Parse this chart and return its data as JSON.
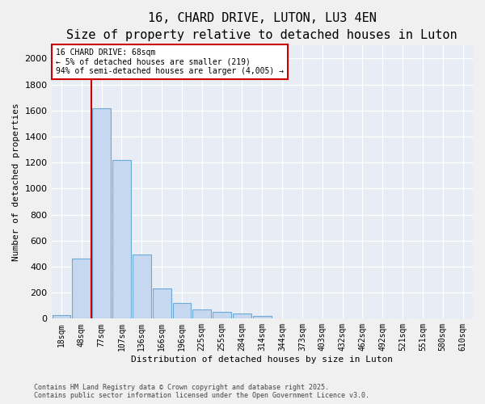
{
  "title": "16, CHARD DRIVE, LUTON, LU3 4EN",
  "subtitle": "Size of property relative to detached houses in Luton",
  "xlabel": "Distribution of detached houses by size in Luton",
  "ylabel": "Number of detached properties",
  "bin_labels": [
    "18sqm",
    "48sqm",
    "77sqm",
    "107sqm",
    "136sqm",
    "166sqm",
    "196sqm",
    "225sqm",
    "255sqm",
    "284sqm",
    "314sqm",
    "344sqm",
    "373sqm",
    "403sqm",
    "432sqm",
    "462sqm",
    "492sqm",
    "521sqm",
    "551sqm",
    "580sqm",
    "610sqm"
  ],
  "bar_heights": [
    30,
    460,
    1620,
    1220,
    490,
    230,
    120,
    70,
    50,
    40,
    20,
    5,
    2,
    1,
    1,
    0,
    0,
    0,
    0,
    0,
    0
  ],
  "bar_color": "#c5d8ef",
  "bar_edge_color": "#6aaad4",
  "vline_x": 1.5,
  "vline_color": "#cc0000",
  "annotation_text": "16 CHARD DRIVE: 68sqm\n← 5% of detached houses are smaller (219)\n94% of semi-detached houses are larger (4,005) →",
  "annotation_box_facecolor": "#ffffff",
  "annotation_box_edgecolor": "#cc0000",
  "ylim": [
    0,
    2100
  ],
  "yticks": [
    0,
    200,
    400,
    600,
    800,
    1000,
    1200,
    1400,
    1600,
    1800,
    2000
  ],
  "bg_color": "#e8edf5",
  "fig_facecolor": "#f0f0f0",
  "footer1": "Contains HM Land Registry data © Crown copyright and database right 2025.",
  "footer2": "Contains public sector information licensed under the Open Government Licence v3.0.",
  "title_fontsize": 11,
  "subtitle_fontsize": 9,
  "axis_label_fontsize": 8,
  "tick_fontsize": 7,
  "annotation_fontsize": 7,
  "footer_fontsize": 6
}
